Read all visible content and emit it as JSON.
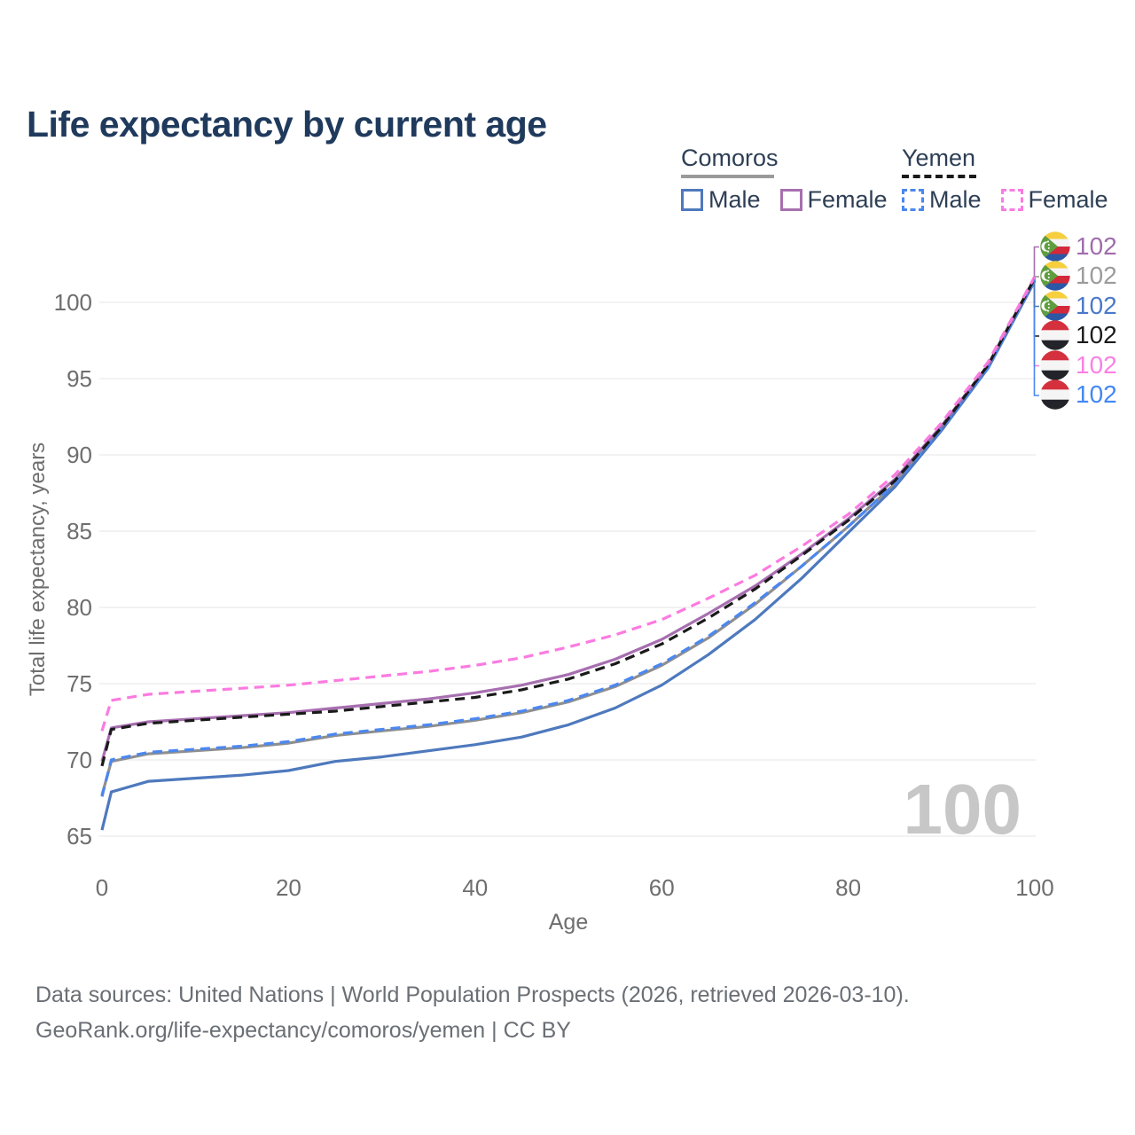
{
  "page": {
    "title": "Life expectancy by current age",
    "watermark": "100",
    "footer_line1": "Data sources: United Nations | World Population Prospects (2026, retrieved 2026-03-10).",
    "footer_line2": "GeoRank.org/life-expectancy/comoros/yemen | CC BY"
  },
  "colors": {
    "title": "#1f3a5c",
    "legend_text": "#2e3f55",
    "axis_text": "#6e6e6e",
    "grid": "#ebebeb",
    "watermark": "#c7c7c7",
    "footer": "#6a6f75"
  },
  "legend": {
    "groups": [
      {
        "country": "Comoros",
        "line_style": "solid",
        "underline_color": "#9a9a9a",
        "items": [
          {
            "label": "Male",
            "color": "#4E79BD",
            "dashed": false
          },
          {
            "label": "Female",
            "color": "#A76FB0",
            "dashed": false
          }
        ]
      },
      {
        "country": "Yemen",
        "line_style": "dashed",
        "underline_color": "#1a1a1a",
        "items": [
          {
            "label": "Male",
            "color": "#4B87F0",
            "dashed": true
          },
          {
            "label": "Female",
            "color": "#FB7BE0",
            "dashed": true
          }
        ]
      }
    ]
  },
  "chart_data": {
    "type": "line",
    "title": "Life expectancy by current age",
    "xlabel": "Age",
    "ylabel": "Total life expectancy, years",
    "xticks": [
      0,
      20,
      40,
      60,
      80,
      100
    ],
    "yticks": [
      65,
      70,
      75,
      80,
      85,
      90,
      95,
      100
    ],
    "xlim": [
      0,
      100
    ],
    "ylim": [
      63.5,
      103.5
    ],
    "grid": "horizontal-only",
    "legend_position": "top-right",
    "watermark": "100",
    "ages": [
      0,
      1,
      5,
      10,
      15,
      20,
      25,
      30,
      35,
      40,
      45,
      50,
      55,
      60,
      65,
      70,
      75,
      80,
      85,
      90,
      95,
      100
    ],
    "series": [
      {
        "name": "Comoros — Both sexes",
        "country": "Comoros",
        "sex": "Both",
        "flag": "comoros",
        "color": "#8F8F8F",
        "dashed": false,
        "label_row": 1,
        "end_label": "102",
        "label_color": "#9B9B9B",
        "values": [
          67.7,
          69.9,
          70.4,
          70.6,
          70.8,
          71.1,
          71.6,
          71.9,
          72.2,
          72.6,
          73.1,
          73.8,
          74.8,
          76.2,
          78.0,
          80.2,
          82.7,
          85.3,
          88.1,
          91.7,
          95.8,
          101.5
        ]
      },
      {
        "name": "Comoros — Male",
        "country": "Comoros",
        "sex": "Male",
        "flag": "comoros",
        "color": "#4E79BD",
        "dashed": false,
        "label_row": 2,
        "end_label": "102",
        "label_color": "#4A79C9",
        "values": [
          65.4,
          67.9,
          68.6,
          68.8,
          69.0,
          69.3,
          69.9,
          70.2,
          70.6,
          71.0,
          71.5,
          72.3,
          73.4,
          74.9,
          76.9,
          79.2,
          81.9,
          84.9,
          87.9,
          91.6,
          95.7,
          101.4
        ]
      },
      {
        "name": "Comoros — Female",
        "country": "Comoros",
        "sex": "Female",
        "flag": "comoros",
        "color": "#A76FB0",
        "dashed": false,
        "label_row": 0,
        "end_label": "102",
        "label_color": "#9F6CAB",
        "values": [
          69.9,
          72.1,
          72.5,
          72.7,
          72.9,
          73.1,
          73.4,
          73.7,
          74.0,
          74.4,
          74.9,
          75.6,
          76.6,
          77.9,
          79.6,
          81.4,
          83.5,
          85.8,
          88.4,
          91.9,
          95.9,
          101.6
        ]
      },
      {
        "name": "Yemen — Male",
        "country": "Yemen",
        "sex": "Male",
        "flag": "yemen",
        "color": "#4B87F0",
        "dashed": true,
        "label_row": 5,
        "end_label": "102",
        "label_color": "#4287F5",
        "values": [
          67.6,
          70.0,
          70.5,
          70.7,
          70.9,
          71.2,
          71.7,
          72.0,
          72.3,
          72.7,
          73.2,
          73.9,
          74.9,
          76.3,
          78.1,
          80.3,
          82.7,
          85.3,
          88.1,
          91.7,
          95.7,
          101.5
        ]
      },
      {
        "name": "Yemen — Both sexes",
        "country": "Yemen",
        "sex": "Both",
        "flag": "yemen",
        "color": "#1A1A1A",
        "dashed": true,
        "label_row": 3,
        "end_label": "102",
        "label_color": "#1B1B1B",
        "values": [
          69.6,
          72.0,
          72.4,
          72.6,
          72.8,
          73.0,
          73.2,
          73.5,
          73.8,
          74.1,
          74.6,
          75.3,
          76.3,
          77.6,
          79.3,
          81.2,
          83.4,
          85.7,
          88.3,
          91.8,
          95.9,
          101.6
        ]
      },
      {
        "name": "Yemen — Female",
        "country": "Yemen",
        "sex": "Female",
        "flag": "yemen",
        "color": "#FB7BE0",
        "dashed": true,
        "label_row": 4,
        "end_label": "102",
        "label_color": "#FB80E4",
        "values": [
          71.9,
          73.9,
          74.3,
          74.5,
          74.7,
          74.9,
          75.2,
          75.5,
          75.8,
          76.2,
          76.7,
          77.4,
          78.2,
          79.2,
          80.6,
          82.1,
          84.0,
          86.1,
          88.7,
          92.1,
          96.1,
          101.7
        ]
      }
    ]
  }
}
